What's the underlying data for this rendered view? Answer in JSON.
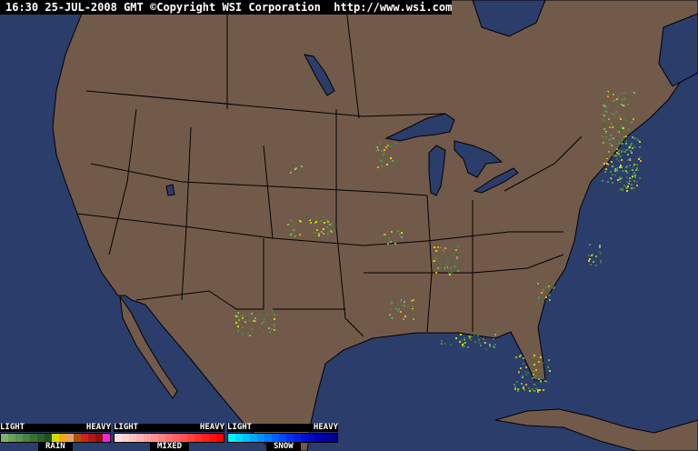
{
  "header": {
    "time": "16:30",
    "date": "25-JUL-2008",
    "zone": "GMT",
    "copyright": "©Copyright WSI Corporation",
    "url": "http://www.wsi.com"
  },
  "colors": {
    "ocean": "#2b3d6b",
    "land": "#725a4a",
    "borders": "#000000"
  },
  "legend": [
    {
      "light": "LIGHT",
      "heavy": "HEAVY",
      "name": "RAIN",
      "colors": [
        "#7fb26a",
        "#6aa05a",
        "#5a9050",
        "#4a8040",
        "#3a7035",
        "#2a602a",
        "#1e501f",
        "#d8d800",
        "#f8a800",
        "#e0a070",
        "#b05000",
        "#d02020",
        "#b01818",
        "#901010",
        "#ff20e0"
      ]
    },
    {
      "light": "LIGHT",
      "heavy": "HEAVY",
      "name": "MIXED",
      "colors": [
        "#ffe0e0",
        "#ffd0d0",
        "#ffc0c0",
        "#ffb0b0",
        "#ffa0a0",
        "#ff9090",
        "#ff8080",
        "#ff7070",
        "#ff6060",
        "#ff5050",
        "#ff4040",
        "#ff3030",
        "#ff2020",
        "#ff1010",
        "#ff0000"
      ]
    },
    {
      "light": "LIGHT",
      "heavy": "HEAVY",
      "name": "SNOW",
      "colors": [
        "#00f0ff",
        "#00d8ff",
        "#00c0ff",
        "#00a8ff",
        "#0090ff",
        "#0078ff",
        "#0060ff",
        "#0048ff",
        "#0030f0",
        "#0020e0",
        "#0010d0",
        "#0008c0",
        "#0000b0",
        "#0000a0",
        "#000090"
      ]
    }
  ]
}
